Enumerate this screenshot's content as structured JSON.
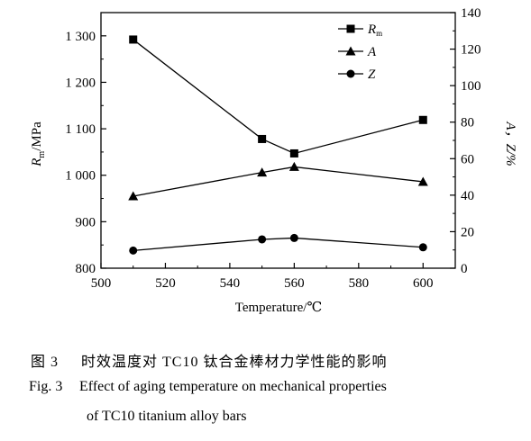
{
  "chart_data": {
    "type": "line",
    "x": [
      510,
      550,
      560,
      600
    ],
    "xlabel": "Temperature/℃",
    "xlim": [
      500,
      610
    ],
    "xticks": [
      500,
      520,
      540,
      560,
      580,
      600
    ],
    "ylabel_left_base": "R",
    "ylabel_left_sub": "m",
    "ylabel_left_unit": "/MPa",
    "ylim_left": [
      800,
      1350
    ],
    "yticks_left": [
      800,
      900,
      1000,
      1100,
      1200,
      1300
    ],
    "yticks_left_labels": [
      "800",
      "900",
      "1 000",
      "1 100",
      "1 200",
      "1 300"
    ],
    "ylabel_right": "A，Z/%",
    "ylim_right": [
      0,
      140
    ],
    "yticks_right": [
      0,
      20,
      40,
      60,
      80,
      100,
      120,
      140
    ],
    "series": [
      {
        "name": "R",
        "name_sub": "m",
        "axis": "left",
        "marker": "square",
        "values": [
          1292,
          1078,
          1047,
          1119
        ]
      },
      {
        "name": "A",
        "axis": "left",
        "marker": "triangle",
        "values": [
          955,
          1006,
          1018,
          986
        ]
      },
      {
        "name": "Z",
        "axis": "left",
        "marker": "circle",
        "values": [
          838,
          862,
          865,
          845
        ]
      }
    ],
    "legend_position": "top-right-inside"
  },
  "caption": {
    "cn_num": "图 3",
    "cn_text": "时效温度对 TC10 钛合金棒材力学性能的影响",
    "en_num": "Fig. 3",
    "en_line1": "Effect of aging temperature on mechanical properties",
    "en_line2": "of TC10 titanium alloy bars"
  }
}
